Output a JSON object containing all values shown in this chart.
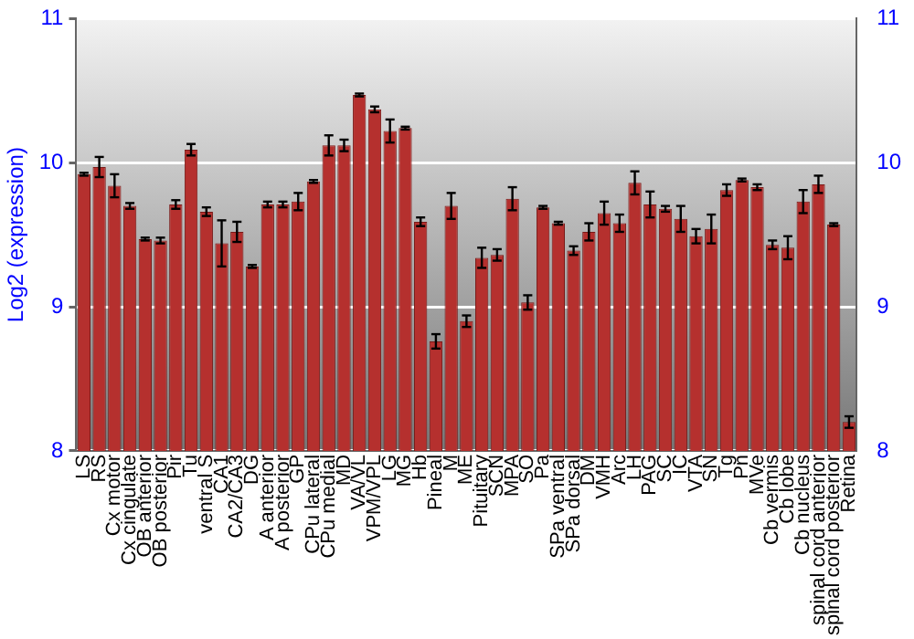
{
  "chart_data": {
    "type": "bar",
    "ylabel": "Log2 (expression)",
    "categories": [
      "LS",
      "RS",
      "Cx motor",
      "Cx cingulate",
      "OB anterior",
      "OB posterior",
      "Pir",
      "Tu",
      "ventral S",
      "CA1",
      "CA2/CA3",
      "DG",
      "A anterior",
      "A posterior",
      "GP",
      "CPu lateral",
      "CPu medial",
      "MD",
      "VA/VL",
      "VPM/VPL",
      "LG",
      "MG",
      "Hb",
      "Pineal",
      "M",
      "ME",
      "Pituitary",
      "SCN",
      "MPA",
      "SO",
      "Pa",
      "SPa ventral",
      "SPa dorsal",
      "DM",
      "VMH",
      "Arc",
      "LH",
      "PAG",
      "SC",
      "IC",
      "VTA",
      "SN",
      "Tg",
      "Pn",
      "MVe",
      "Cb vermis",
      "Cb lobe",
      "Cb nucleus",
      "spinal cord anterior",
      "spinal cord posterior",
      "Retina"
    ],
    "values": [
      9.92,
      9.97,
      9.84,
      9.7,
      9.47,
      9.46,
      9.71,
      10.09,
      9.66,
      9.44,
      9.52,
      9.28,
      9.71,
      9.71,
      9.73,
      9.87,
      10.12,
      10.12,
      10.47,
      10.37,
      10.22,
      10.24,
      9.59,
      8.76,
      9.7,
      8.9,
      9.34,
      9.36,
      9.75,
      9.03,
      9.69,
      9.58,
      9.39,
      9.52,
      9.65,
      9.58,
      9.86,
      9.71,
      9.68,
      9.61,
      9.49,
      9.54,
      9.81,
      9.88,
      9.83,
      9.43,
      9.41,
      9.73,
      9.85,
      9.57,
      8.2
    ],
    "errors": [
      0.01,
      0.07,
      0.08,
      0.02,
      0.01,
      0.02,
      0.03,
      0.04,
      0.03,
      0.16,
      0.07,
      0.01,
      0.02,
      0.02,
      0.06,
      0.01,
      0.07,
      0.04,
      0.01,
      0.02,
      0.08,
      0.01,
      0.03,
      0.05,
      0.09,
      0.04,
      0.07,
      0.04,
      0.08,
      0.05,
      0.01,
      0.01,
      0.03,
      0.06,
      0.08,
      0.06,
      0.08,
      0.09,
      0.02,
      0.09,
      0.05,
      0.1,
      0.04,
      0.01,
      0.02,
      0.03,
      0.08,
      0.08,
      0.06,
      0.01,
      0.04
    ],
    "color": "#b5302e",
    "ylim": [
      8,
      11
    ],
    "yticks": [
      8,
      9,
      10,
      11
    ],
    "y2lim": [
      8,
      11
    ],
    "y2ticks": [
      8,
      9,
      10,
      11
    ],
    "grid": "y",
    "legend": false
  }
}
